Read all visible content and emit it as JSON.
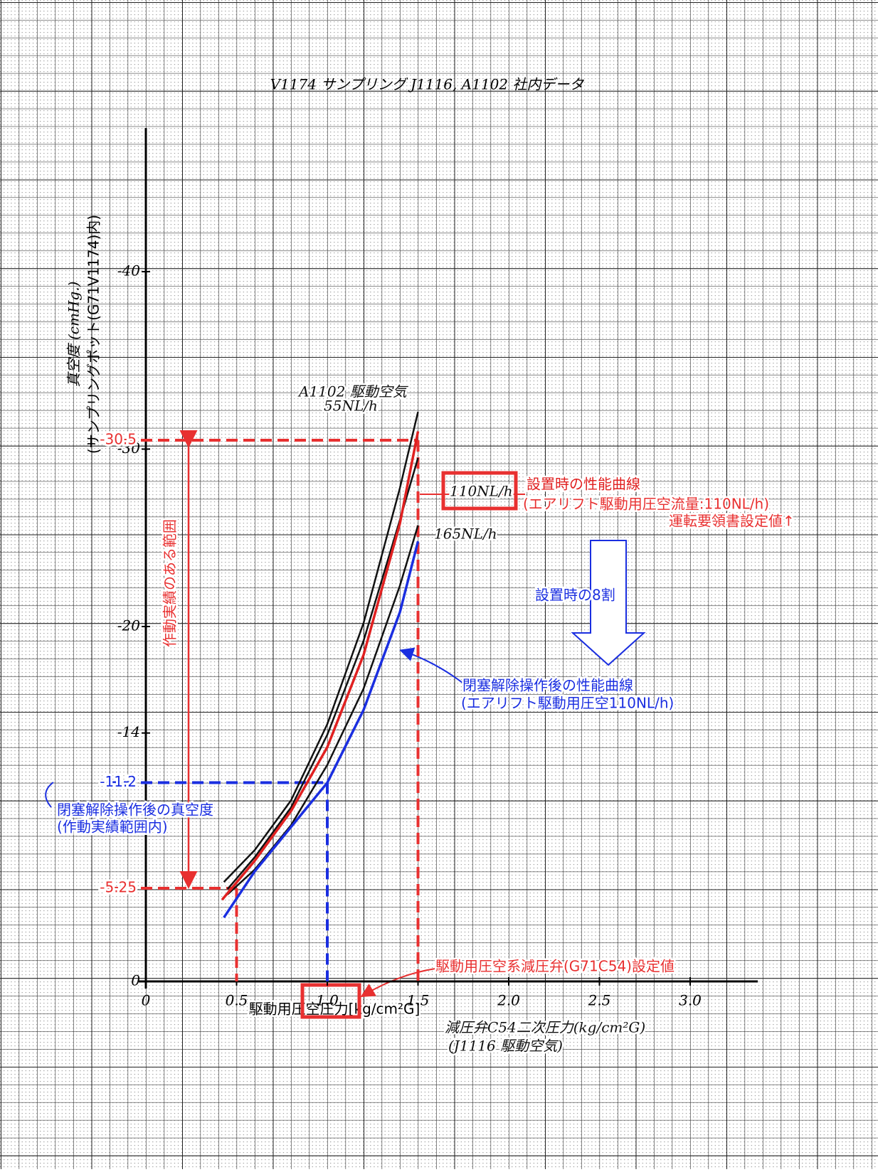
{
  "chart_data": {
    "type": "line",
    "title": "V1174 サンプリング J1116, A1102 社内データ",
    "x_label": "駆動用圧空圧力[kg/cm²G]",
    "y_label": [
      "真空度 (cmHg.)",
      "(サンプリングポット(G71V1174)内)"
    ],
    "xlim": [
      0,
      3.4
    ],
    "ylim": [
      0,
      -50
    ],
    "xticks": [
      0,
      0.5,
      {
        "value": 1,
        "label": "1.0"
      },
      1.5,
      {
        "value": 2,
        "label": "2.0"
      },
      2.5,
      {
        "value": 3,
        "label": "3.0"
      }
    ],
    "yticks": [
      0,
      -14,
      -20,
      -30,
      -40
    ],
    "series": [
      {
        "name": "55NL/h",
        "color": "#111111",
        "x": [
          0.43,
          0.6,
          0.8,
          1.0,
          1.2,
          1.4,
          1.5
        ],
        "values": [
          -5.6,
          -7.4,
          -10.2,
          -14.5,
          -20.2,
          -27.8,
          -32.1
        ]
      },
      {
        "name": "110NL/h",
        "color": "#111111",
        "x": [
          0.45,
          0.6,
          0.8,
          1.0,
          1.2,
          1.4,
          1.5
        ],
        "values": [
          -5.2,
          -7.0,
          -9.8,
          -13.9,
          -19.2,
          -26.0,
          -29.5
        ]
      },
      {
        "name": "165NL/h",
        "color": "#111111",
        "x": [
          0.45,
          0.6,
          0.8,
          1.0,
          1.2,
          1.4,
          1.5
        ],
        "values": [
          -4.9,
          -6.3,
          -8.8,
          -12.2,
          -16.5,
          -22.3,
          -25.7
        ]
      },
      {
        "name": "設置時の性能曲線",
        "color": "#e02020",
        "x": [
          0.42,
          0.6,
          0.8,
          1.0,
          1.2,
          1.4,
          1.5
        ],
        "values": [
          -4.6,
          -6.8,
          -9.6,
          -13.2,
          -18.4,
          -25.8,
          -31.0
        ]
      },
      {
        "name": "閉塞解除操作後の性能曲線",
        "color": "#1a2ee0",
        "x": [
          0.43,
          0.6,
          0.8,
          1.0,
          1.2,
          1.4,
          1.5
        ],
        "values": [
          -3.6,
          -6.2,
          -8.7,
          -11.2,
          -15.3,
          -20.8,
          -24.8
        ]
      }
    ],
    "hlines": [
      {
        "value": -30.5,
        "color": "#e83030"
      },
      {
        "value": -11.2,
        "color": "#1a2ee0"
      },
      {
        "value": -5.25,
        "color": "#e83030"
      }
    ],
    "vlines": [
      {
        "value": 1.5,
        "color": "#e83030"
      },
      {
        "value": 1,
        "color": "#1a2ee0"
      },
      {
        "value": 0.5,
        "color": "#e83030"
      }
    ],
    "annotations": [
      "作動実績のある範囲",
      "(エアリフト駆動用圧空流量:110NL/h)",
      "運転要領書設定値↑",
      "設置時の8割",
      "(エアリフト駆動用圧空110NL/h)",
      "閉塞解除操作後の真空度",
      "(作動実績範囲内)",
      "駆動用圧空系減圧弁(G71C54)設定値",
      "A1102 駆動空気",
      "減圧弁C54二次圧力(kg/cm²G)",
      "(J1116 駆動空気)"
    ]
  }
}
